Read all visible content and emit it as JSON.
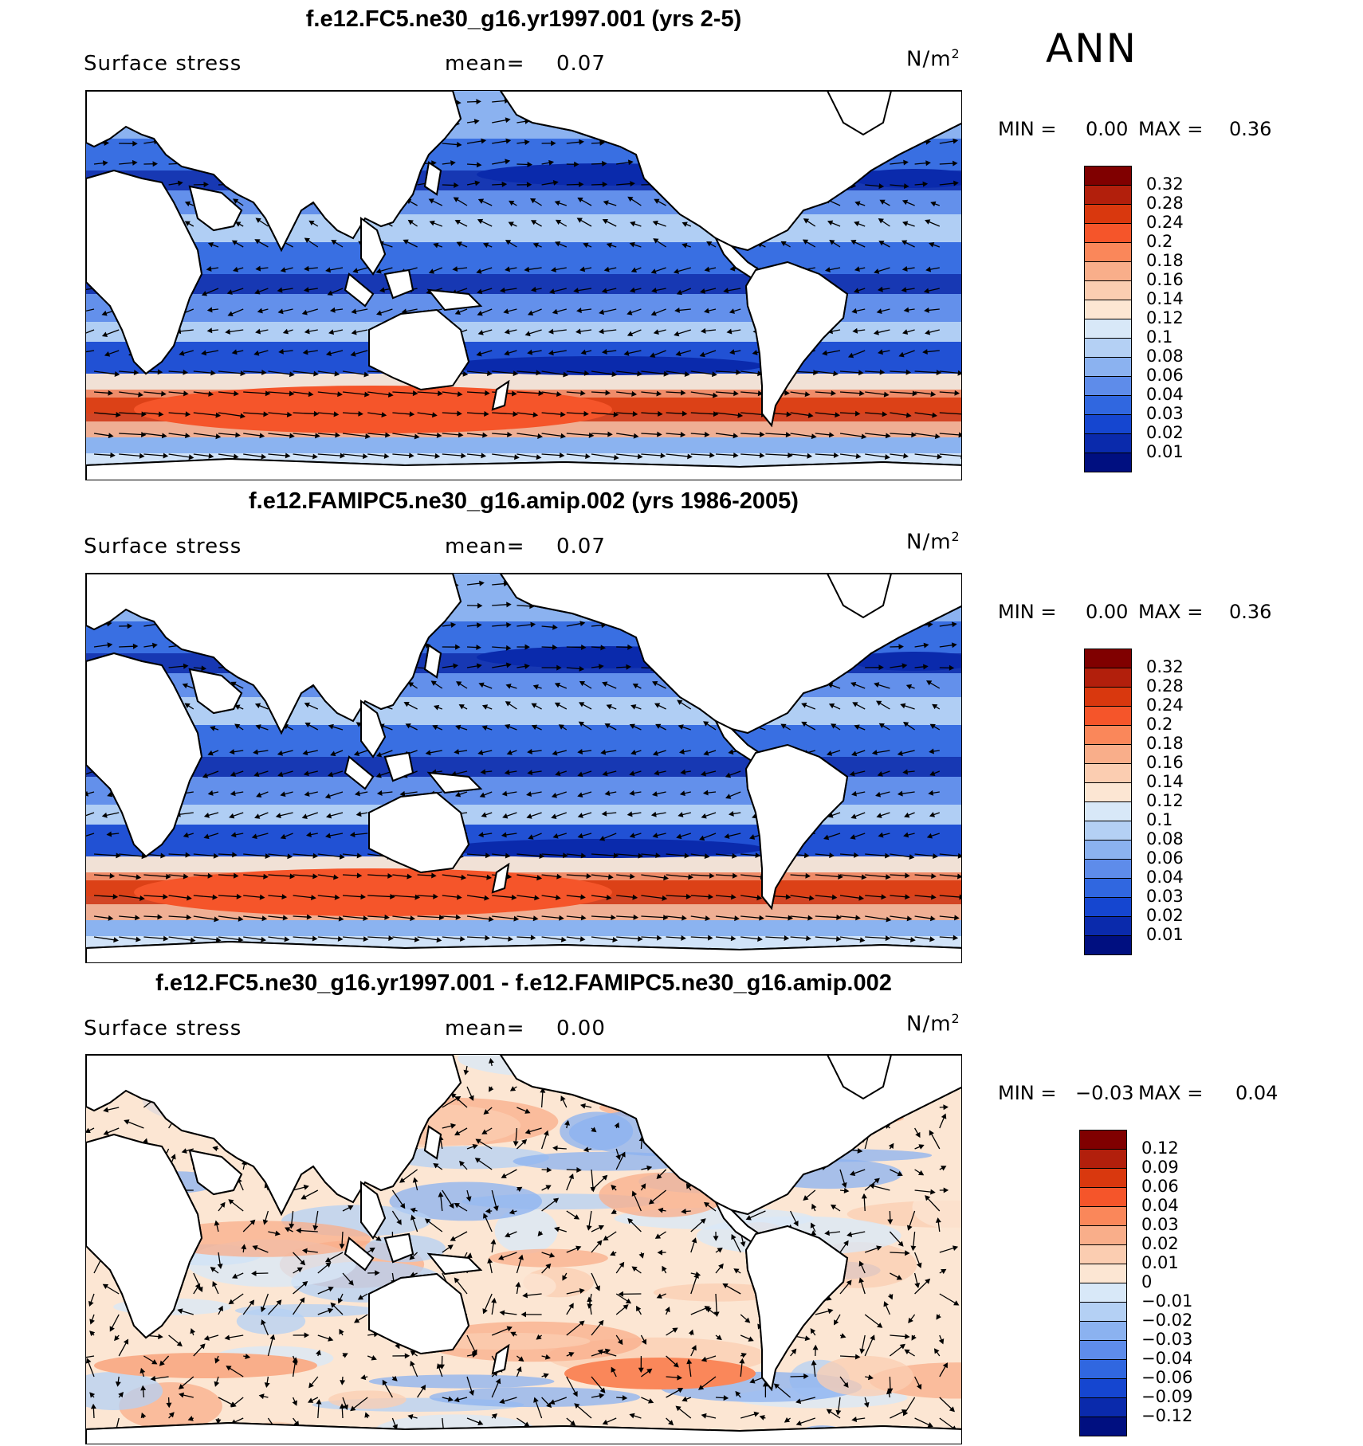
{
  "season": "ANN",
  "panels": [
    {
      "title": "f.e12.FC5.ne30_g16.yr1997.001 (yrs 2-5)",
      "variable": "Surface stress",
      "mean_label": "mean=",
      "mean_value": "0.07",
      "units": "N/m",
      "units_exp": "2",
      "min_label": "MIN =",
      "min_value": "0.00",
      "max_label": "MAX =",
      "max_value": "0.36",
      "kind": "abs"
    },
    {
      "title": "f.e12.FAMIPC5.ne30_g16.amip.002 (yrs 1986-2005)",
      "variable": "Surface stress",
      "mean_label": "mean=",
      "mean_value": "0.07",
      "units": "N/m",
      "units_exp": "2",
      "min_label": "MIN =",
      "min_value": "0.00",
      "max_label": "MAX =",
      "max_value": "0.36",
      "kind": "abs"
    },
    {
      "title": "f.e12.FC5.ne30_g16.yr1997.001 - f.e12.FAMIPC5.ne30_g16.amip.002",
      "variable": "Surface stress",
      "mean_label": "mean=",
      "mean_value": "0.00",
      "units": "N/m",
      "units_exp": "2",
      "min_label": "MIN =",
      "min_value": "−0.03",
      "max_label": "MAX =",
      "max_value": "0.04",
      "kind": "diff"
    }
  ],
  "colorbar_abs": {
    "labels": [
      "0.32",
      "0.28",
      "0.24",
      "0.2",
      "0.18",
      "0.16",
      "0.14",
      "0.12",
      "0.1",
      "0.08",
      "0.06",
      "0.04",
      "0.03",
      "0.02",
      "0.01"
    ],
    "colors": [
      "#800000",
      "#b21f0c",
      "#d9380e",
      "#f5552a",
      "#fa875a",
      "#f9ae8a",
      "#fbcdb1",
      "#fce6d3",
      "#d8e8f8",
      "#b4d0f4",
      "#8bb2f0",
      "#5e8cea",
      "#3067e0",
      "#1546d0",
      "#0a2aac",
      "#000f80"
    ]
  },
  "colorbar_diff": {
    "labels": [
      "0.12",
      "0.09",
      "0.06",
      "0.04",
      "0.03",
      "0.02",
      "0.01",
      "0",
      "−0.01",
      "−0.02",
      "−0.03",
      "−0.04",
      "−0.06",
      "−0.09",
      "−0.12"
    ],
    "colors": [
      "#800000",
      "#b21f0c",
      "#d9380e",
      "#f5552a",
      "#fa875a",
      "#f9ae8a",
      "#fbcdb1",
      "#fce6d3",
      "#d8e8f8",
      "#b4d0f4",
      "#8bb2f0",
      "#5e8cea",
      "#3067e0",
      "#1546d0",
      "#0a2aac",
      "#000f80"
    ]
  },
  "map_colors": {
    "land": "#ffffff",
    "coast": "#000000",
    "arrow": "#000000"
  }
}
